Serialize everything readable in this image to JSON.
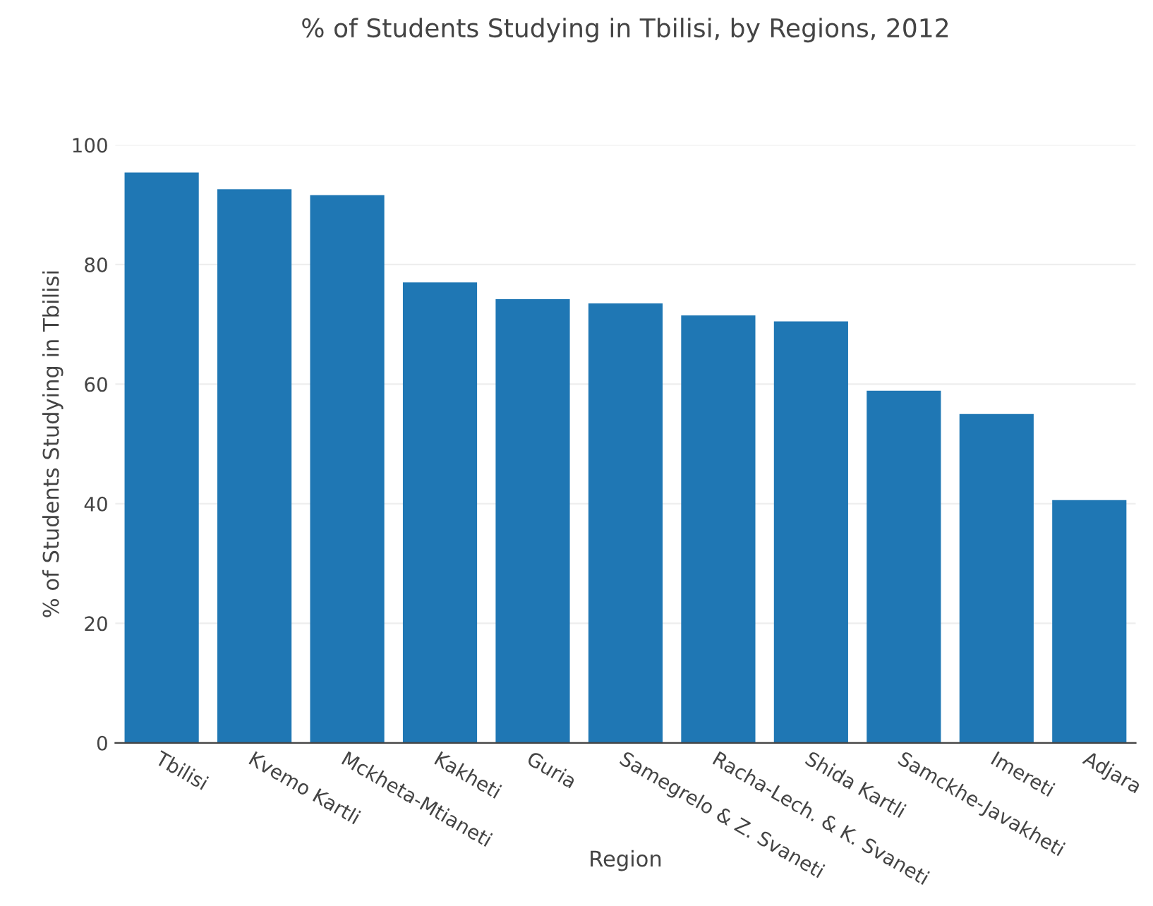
{
  "chart_data": {
    "type": "bar",
    "title": "% of Students Studying in Tbilisi, by Regions, 2012",
    "xlabel": "Region",
    "ylabel": "% of Students Studying in Tbilisi",
    "categories": [
      "Tbilisi",
      "Kvemo Kartli",
      "Mckheta-Mtianeti",
      "Kakheti",
      "Guria",
      "Samegrelo & Z. Svaneti",
      "Racha-Lech. & K. Svaneti",
      "Shida Kartli",
      "Samckhe-Javakheti",
      "Imereti",
      "Adjara"
    ],
    "values": [
      95.4,
      92.6,
      91.6,
      77.0,
      74.2,
      73.5,
      71.5,
      70.5,
      58.9,
      55.0,
      40.6
    ],
    "color": "#1f77b4",
    "ylim": [
      0,
      100
    ],
    "yticks": [
      0,
      20,
      40,
      60,
      80,
      100
    ],
    "grid": "y"
  }
}
